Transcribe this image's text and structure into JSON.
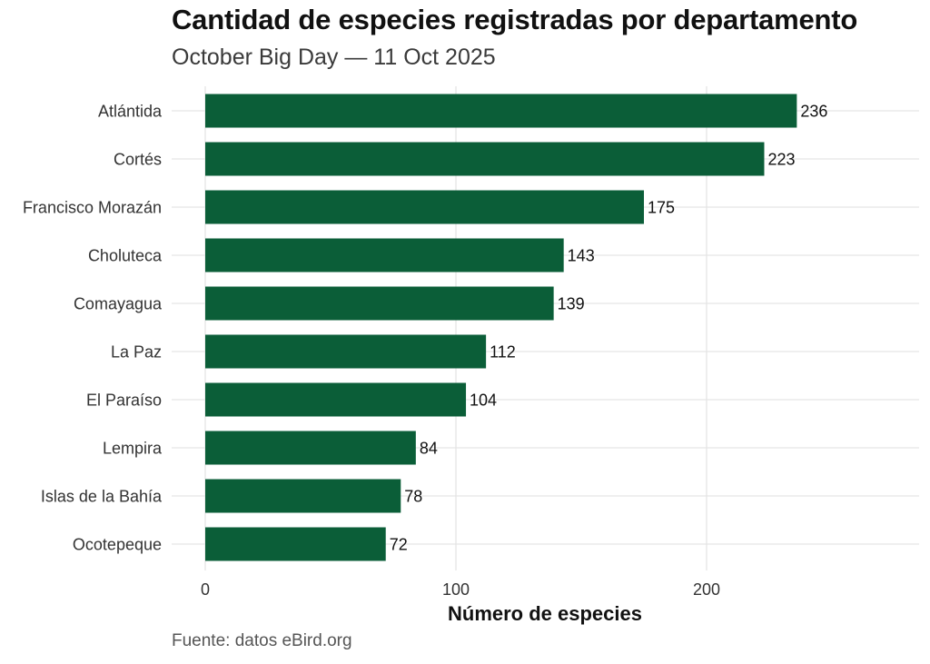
{
  "chart_data": {
    "type": "bar",
    "orientation": "horizontal",
    "title": "Cantidad de especies registradas por departamento",
    "subtitle": "October Big Day — 11 Oct 2025",
    "caption": "Fuente: datos eBird.org",
    "xlabel": "Número de especies",
    "ylabel": "",
    "categories": [
      "Atlántida",
      "Cortés",
      "Francisco Morazán",
      "Choluteca",
      "Comayagua",
      "La Paz",
      "El Paraíso",
      "Lempira",
      "Islas de la Bahía",
      "Ocotepeque"
    ],
    "values": [
      236,
      223,
      175,
      143,
      139,
      112,
      104,
      84,
      78,
      72
    ],
    "data_labels": [
      "236",
      "223",
      "175",
      "143",
      "139",
      "112",
      "104",
      "84",
      "78",
      "72"
    ],
    "xlim": [
      0,
      283
    ],
    "xticks": [
      0,
      100,
      200
    ],
    "xtick_labels": [
      "0",
      "100",
      "200"
    ],
    "grid": true,
    "legend": "none",
    "bar_color": "#0b5e38",
    "grid_color": "#e5e5e5"
  }
}
